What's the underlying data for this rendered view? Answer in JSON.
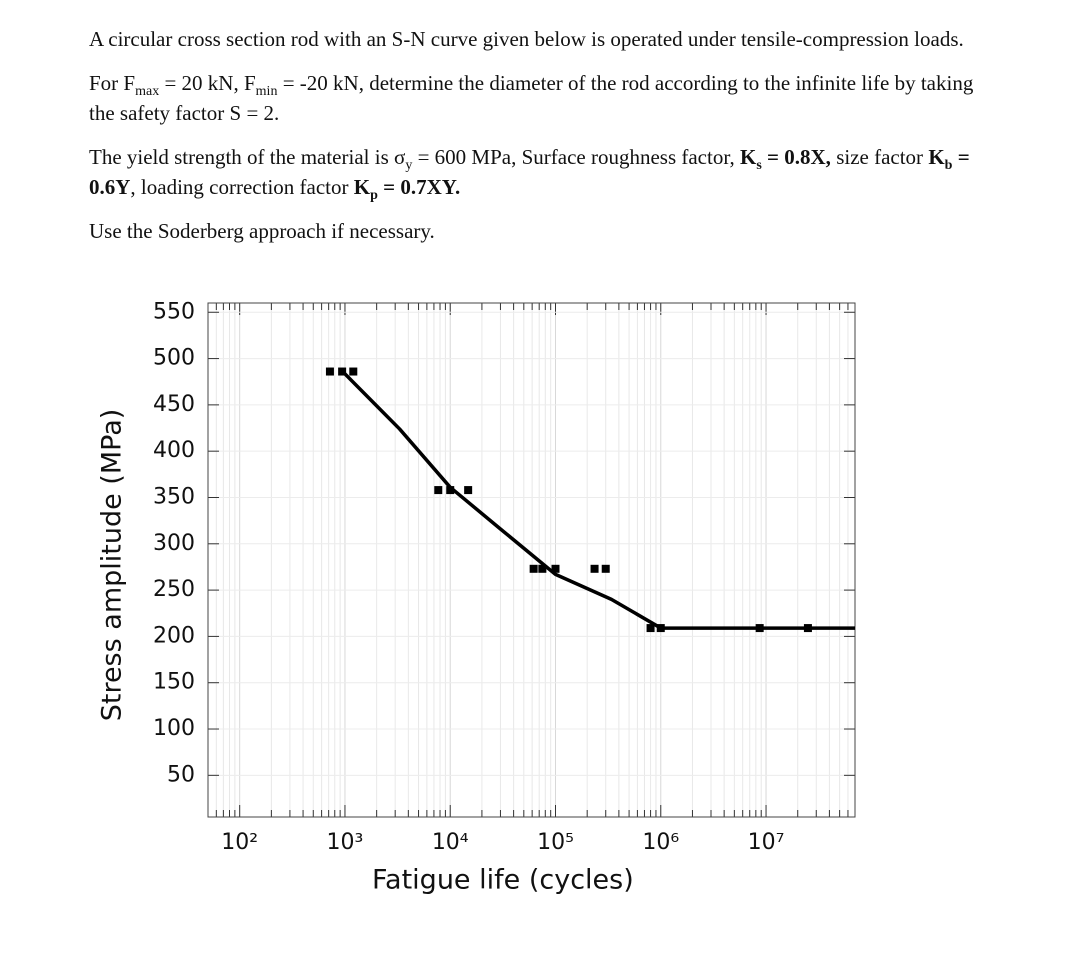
{
  "paragraphs": [
    [
      "A circular cross section rod with an S-N curve given below is operated under tensile-compression loads."
    ],
    [
      "For F",
      "max",
      " = 20 kN, F",
      "min",
      " = -20 kN, determine the diameter of the rod according to the infinite life by taking the safety factor S = 2."
    ],
    [
      "The yield strength of the material is σ",
      "y",
      " = 600 MPa, Surface roughness factor, ",
      "K",
      "s",
      " = 0.8X,",
      " size factor ",
      "K",
      "b",
      " = 0.6Y",
      ", loading correction factor ",
      "K",
      "p",
      " = 0.7XY."
    ],
    [
      "Use the Soderberg approach if necessary."
    ]
  ],
  "chart_data": {
    "type": "scatter-line",
    "x_label": "Fatigue life (cycles)",
    "y_label": "Stress amplitude (MPa)",
    "xlog": true,
    "grid": true,
    "color": "#000000",
    "xlim": [
      50,
      70000000
    ],
    "ylim": [
      5,
      560
    ],
    "xticks": [
      {
        "value": 100,
        "label": "10²"
      },
      {
        "value": 1000,
        "label": "10³"
      },
      {
        "value": 10000,
        "label": "10⁴"
      },
      {
        "value": 100000,
        "label": "10⁵"
      },
      {
        "value": 1000000,
        "label": "10⁶"
      },
      {
        "value": 10000000,
        "label": "10⁷"
      }
    ],
    "yticks": [
      50,
      100,
      150,
      200,
      250,
      300,
      350,
      400,
      450,
      500,
      550
    ],
    "points": {
      "x": [
        720,
        940,
        1200,
        7700,
        10000,
        14800,
        62000,
        75000,
        100000,
        235000,
        300000,
        800000,
        1000000,
        8700000,
        25000000
      ],
      "y": [
        486,
        486,
        486,
        358,
        358,
        358,
        273,
        273,
        273,
        273,
        273,
        209,
        209,
        209,
        209
      ]
    },
    "curve": {
      "x": [
        950,
        3300,
        10000,
        30000,
        100000,
        340000,
        1000000,
        70000000
      ],
      "y": [
        486,
        424,
        361,
        316,
        267,
        240,
        209,
        209
      ]
    }
  }
}
